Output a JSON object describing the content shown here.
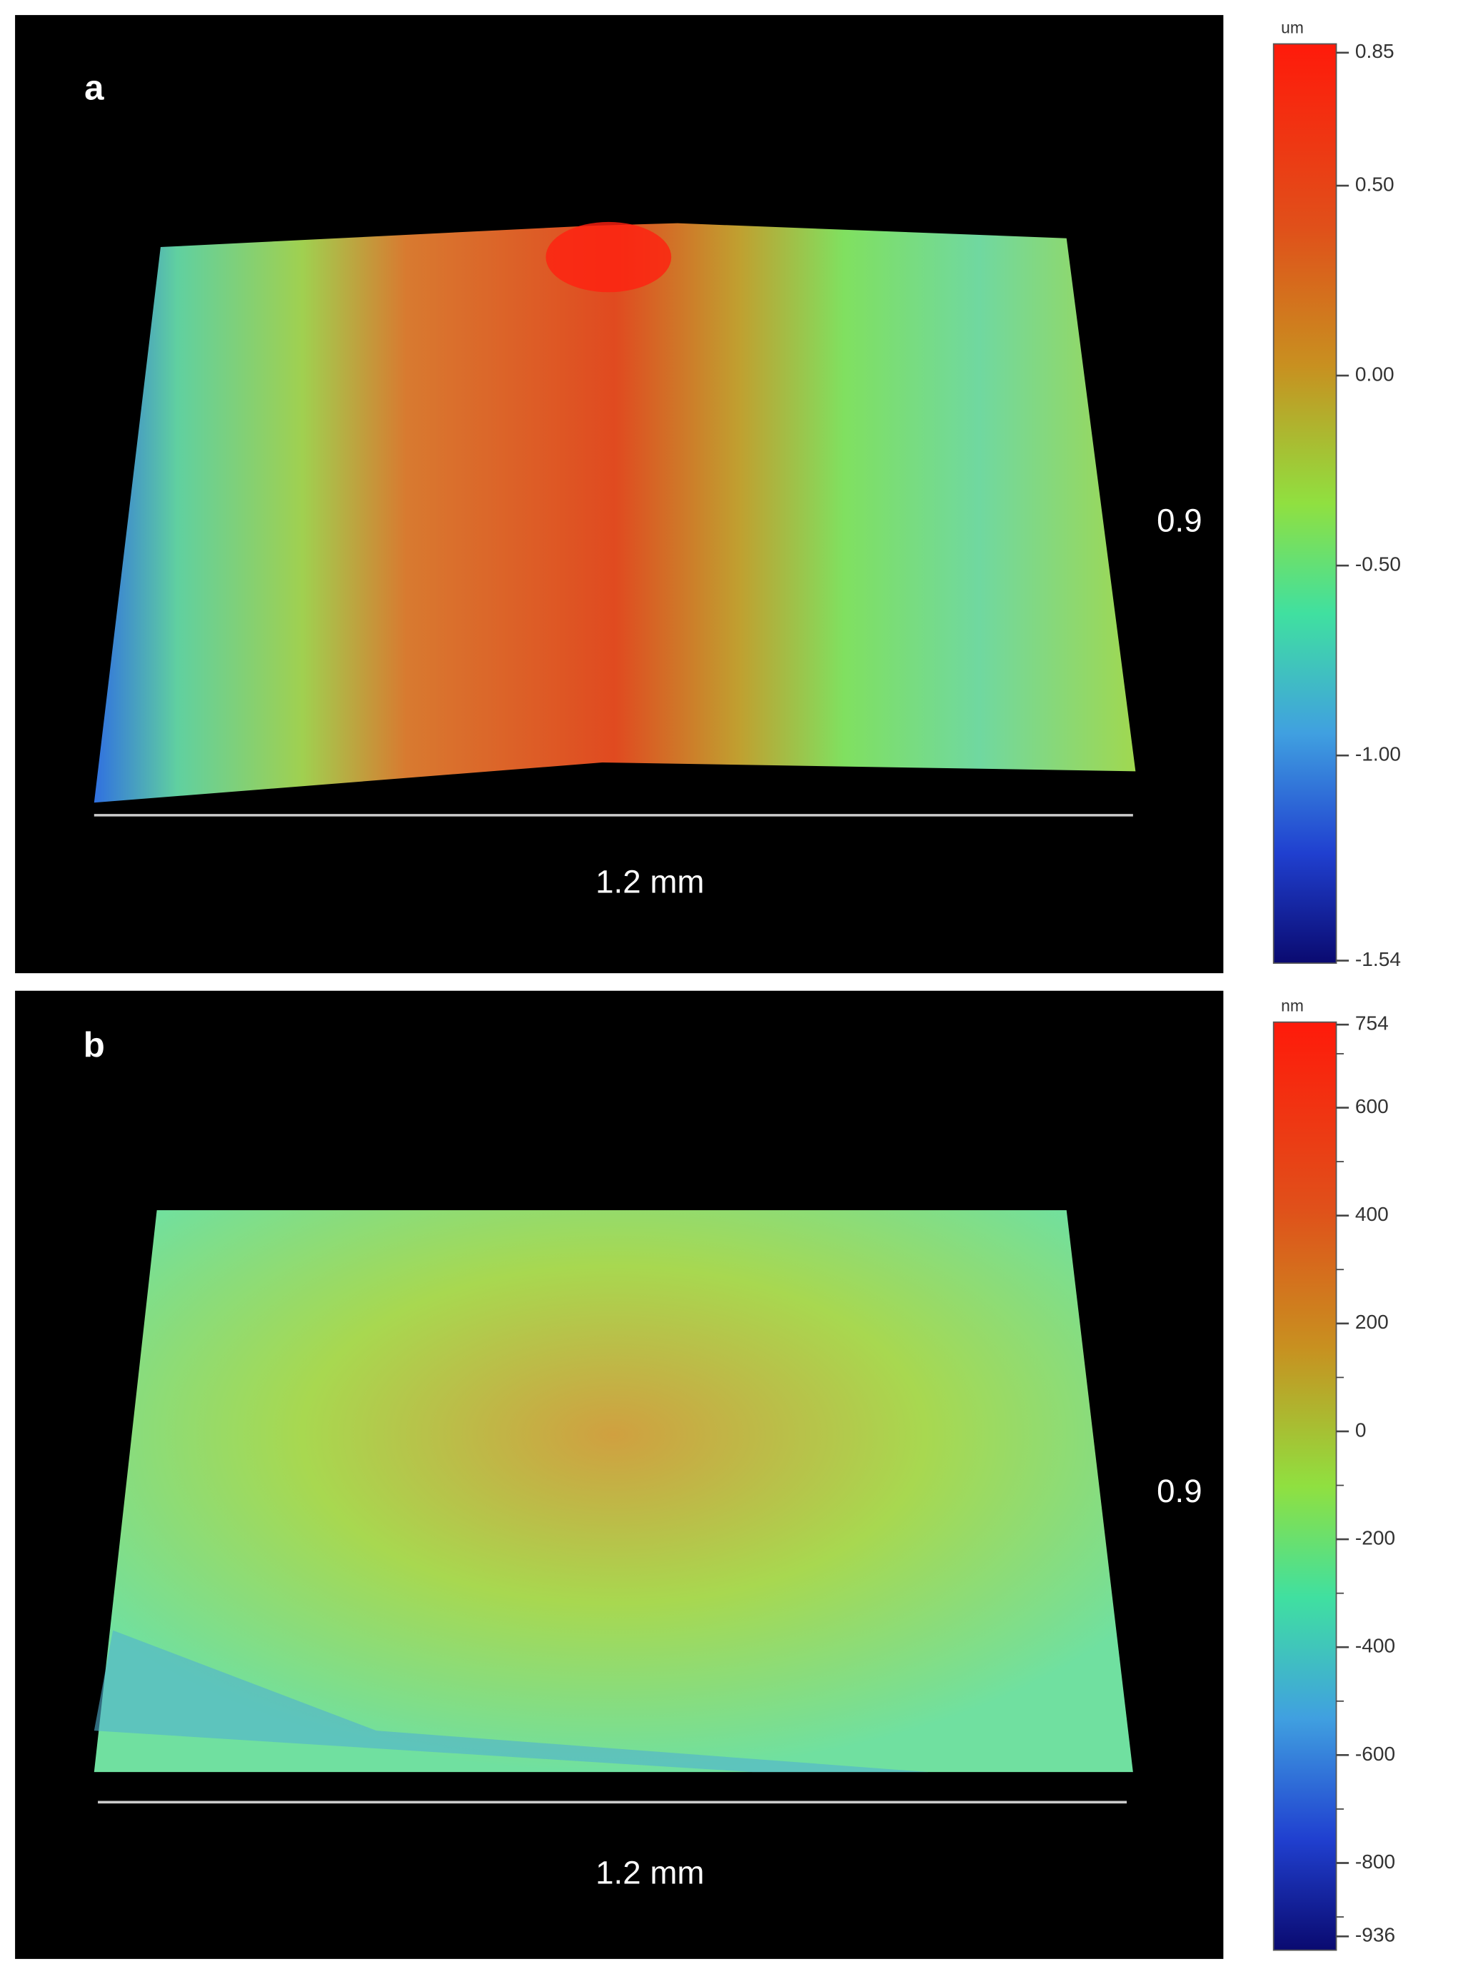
{
  "panels": [
    {
      "label": "a",
      "width_label": "1.2 mm",
      "depth_label": "0.9",
      "unit": "um",
      "range": [
        -1.54,
        0.85
      ],
      "ticks": [
        0.85,
        {
          "value": 0.5,
          "label": "0.50"
        },
        {
          "value": 0,
          "label": "0.00"
        },
        {
          "value": -0.5,
          "label": "-0.50"
        },
        {
          "value": -1,
          "label": "-1.00"
        },
        -1.54
      ],
      "minor_ticks": []
    },
    {
      "label": "b",
      "width_label": "1.2 mm",
      "depth_label": "0.9",
      "unit": "nm",
      "range": [
        -936,
        754
      ],
      "ticks": [
        754,
        600,
        400,
        200,
        0,
        -200,
        -400,
        -600,
        -800,
        -936
      ],
      "minor_ticks": [
        700,
        500,
        300,
        100,
        -100,
        -300,
        -500,
        -700,
        -900
      ]
    }
  ]
}
